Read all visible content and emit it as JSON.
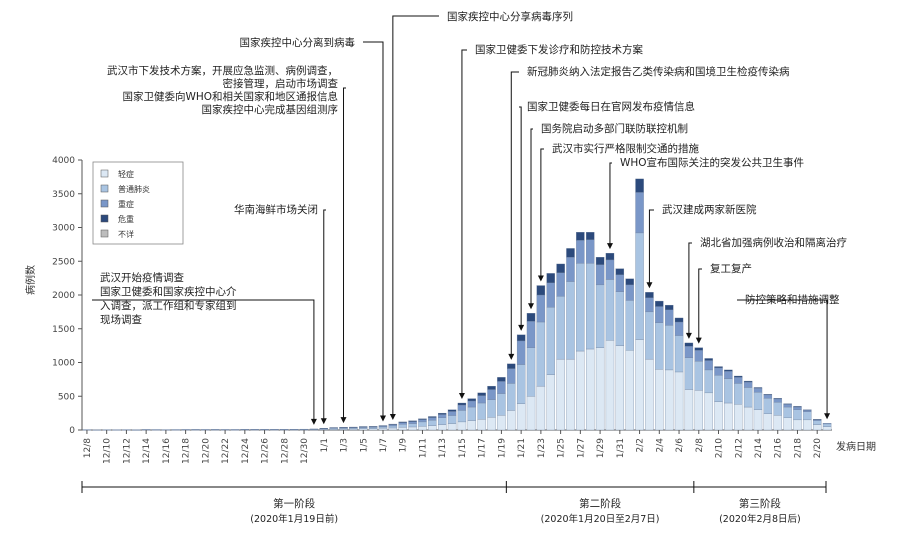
{
  "chart_data": {
    "type": "bar",
    "stacked": true,
    "ylabel": "病例数",
    "xlabel": "发病日期",
    "ylim": [
      0,
      4000
    ],
    "yticks": [
      0,
      500,
      1000,
      1500,
      2000,
      2500,
      3000,
      3500,
      4000
    ],
    "x_tick_labels": [
      "12/8",
      "12/10",
      "12/12",
      "12/14",
      "12/16",
      "12/18",
      "12/20",
      "12/22",
      "12/24",
      "12/26",
      "12/28",
      "12/30",
      "1/1",
      "1/3",
      "1/5",
      "1/7",
      "1/9",
      "1/11",
      "1/13",
      "1/15",
      "1/17",
      "1/19",
      "1/21",
      "1/23",
      "1/25",
      "1/27",
      "1/29",
      "1/31",
      "2/2",
      "2/4",
      "2/6",
      "2/8",
      "2/10",
      "2/12",
      "2/14",
      "2/16",
      "2/18",
      "2/20"
    ],
    "categories": [
      "12/8",
      "12/9",
      "12/10",
      "12/11",
      "12/12",
      "12/13",
      "12/14",
      "12/15",
      "12/16",
      "12/17",
      "12/18",
      "12/19",
      "12/20",
      "12/21",
      "12/22",
      "12/23",
      "12/24",
      "12/25",
      "12/26",
      "12/27",
      "12/28",
      "12/29",
      "12/30",
      "12/31",
      "1/1",
      "1/2",
      "1/3",
      "1/4",
      "1/5",
      "1/6",
      "1/7",
      "1/8",
      "1/9",
      "1/10",
      "1/11",
      "1/12",
      "1/13",
      "1/14",
      "1/15",
      "1/16",
      "1/17",
      "1/18",
      "1/19",
      "1/20",
      "1/21",
      "1/22",
      "1/23",
      "1/24",
      "1/25",
      "1/26",
      "1/27",
      "1/28",
      "1/29",
      "1/30",
      "1/31",
      "2/1",
      "2/2",
      "2/3",
      "2/4",
      "2/5",
      "2/6",
      "2/7",
      "2/8",
      "2/9",
      "2/10",
      "2/11",
      "2/12",
      "2/13",
      "2/14",
      "2/15",
      "2/16",
      "2/17",
      "2/18",
      "2/19",
      "2/20",
      "2/21"
    ],
    "series": [
      {
        "name": "轻症",
        "color": "#dce8f4",
        "values": [
          3,
          1,
          2,
          2,
          2,
          1,
          3,
          3,
          2,
          3,
          3,
          3,
          3,
          4,
          3,
          3,
          4,
          4,
          4,
          4,
          4,
          5,
          5,
          6,
          8,
          12,
          14,
          15,
          18,
          20,
          25,
          30,
          40,
          45,
          55,
          65,
          80,
          95,
          120,
          140,
          160,
          190,
          220,
          290,
          390,
          500,
          650,
          820,
          1050,
          1050,
          1170,
          1200,
          1220,
          1330,
          1250,
          1180,
          1340,
          1050,
          900,
          890,
          860,
          600,
          590,
          550,
          420,
          400,
          380,
          340,
          300,
          240,
          220,
          180,
          150,
          150,
          80,
          50
        ]
      },
      {
        "name": "普通肺炎",
        "color": "#a9c4e2",
        "values": [
          2,
          1,
          2,
          1,
          3,
          2,
          4,
          3,
          3,
          3,
          4,
          4,
          4,
          4,
          4,
          4,
          5,
          5,
          5,
          5,
          5,
          5,
          6,
          7,
          10,
          12,
          14,
          15,
          17,
          18,
          20,
          30,
          45,
          50,
          65,
          80,
          100,
          120,
          170,
          200,
          240,
          260,
          320,
          400,
          580,
          720,
          950,
          1000,
          930,
          1150,
          1300,
          1270,
          930,
          900,
          800,
          740,
          1580,
          700,
          690,
          660,
          540,
          470,
          430,
          340,
          390,
          360,
          310,
          290,
          260,
          230,
          190,
          160,
          150,
          120,
          60,
          40
        ]
      },
      {
        "name": "重症",
        "color": "#7a97c8",
        "values": [
          1,
          0,
          1,
          1,
          1,
          1,
          1,
          1,
          1,
          1,
          1,
          2,
          1,
          1,
          1,
          1,
          1,
          2,
          2,
          2,
          2,
          2,
          2,
          3,
          6,
          10,
          10,
          10,
          12,
          12,
          15,
          20,
          25,
          30,
          35,
          40,
          50,
          60,
          80,
          90,
          110,
          150,
          180,
          220,
          350,
          390,
          400,
          360,
          350,
          360,
          340,
          350,
          300,
          290,
          250,
          230,
          600,
          210,
          240,
          230,
          200,
          170,
          160,
          140,
          110,
          110,
          90,
          80,
          60,
          50,
          50,
          40,
          40,
          25,
          15,
          10
        ]
      },
      {
        "name": "危重",
        "color": "#2c4a7c",
        "values": [
          0,
          0,
          0,
          0,
          0,
          0,
          0,
          0,
          0,
          0,
          0,
          0,
          0,
          0,
          0,
          0,
          0,
          0,
          0,
          0,
          0,
          0,
          0,
          0,
          2,
          3,
          4,
          4,
          5,
          5,
          6,
          8,
          10,
          12,
          12,
          15,
          20,
          25,
          30,
          35,
          40,
          50,
          60,
          70,
          90,
          120,
          140,
          140,
          130,
          130,
          120,
          110,
          110,
          100,
          90,
          90,
          200,
          80,
          80,
          70,
          60,
          50,
          40,
          30,
          20,
          20,
          20,
          15,
          10,
          10,
          10,
          10,
          10,
          5,
          5,
          0
        ]
      },
      {
        "name": "不详",
        "color": "#bdbdbd",
        "values": [
          0,
          0,
          0,
          0,
          0,
          0,
          0,
          0,
          0,
          0,
          0,
          0,
          0,
          0,
          0,
          0,
          0,
          0,
          0,
          0,
          0,
          0,
          0,
          0,
          0,
          0,
          0,
          0,
          0,
          0,
          0,
          0,
          0,
          0,
          0,
          0,
          0,
          0,
          0,
          0,
          0,
          0,
          0,
          0,
          0,
          0,
          0,
          0,
          0,
          0,
          0,
          0,
          0,
          0,
          0,
          0,
          0,
          0,
          0,
          0,
          0,
          0,
          0,
          0,
          0,
          0,
          0,
          0,
          0,
          0,
          0,
          0,
          0,
          0,
          0,
          0
        ]
      }
    ],
    "legend_position": "top-left"
  },
  "annotations": [
    {
      "date": "1/8",
      "lines": [
        "国家疾控中心分享病毒序列"
      ]
    },
    {
      "date": "1/7",
      "lines": [
        "国家疾控中心分离到病毒"
      ]
    },
    {
      "date": "1/3",
      "lines": [
        "武汉市下发技术方案，开展应急监测、病例调查，",
        "密接管理，启动市场调查",
        "国家卫健委向WHO和相关国家和地区通报信息",
        "国家疾控中心完成基因组测序"
      ]
    },
    {
      "date": "1/1",
      "lines": [
        "华南海鲜市场关闭"
      ]
    },
    {
      "date": "12/31",
      "lines": [
        "武汉开始疫情调查",
        "国家卫健委和国家疾控中心介",
        "入调查，派工作组和专家组到",
        "现场调查"
      ]
    },
    {
      "date": "1/15",
      "lines": [
        "国家卫健委下发诊疗和防控技术方案"
      ]
    },
    {
      "date": "1/20",
      "lines": [
        "新冠肺炎纳入法定报告乙类传染病和国境卫生检疫传染病"
      ]
    },
    {
      "date": "1/21",
      "lines": [
        "国家卫健委每日在官网发布疫情信息"
      ]
    },
    {
      "date": "1/22",
      "lines": [
        "国务院启动多部门联防联控机制"
      ]
    },
    {
      "date": "1/23",
      "lines": [
        "武汉市实行严格限制交通的措施"
      ]
    },
    {
      "date": "1/30",
      "lines": [
        "WHO宣布国际关注的突发公共卫生事件"
      ]
    },
    {
      "date": "2/3",
      "lines": [
        "武汉建成两家新医院"
      ]
    },
    {
      "date": "2/7",
      "lines": [
        "湖北省加强病例收治和隔离治疗"
      ]
    },
    {
      "date": "2/8",
      "lines": [
        "复工复产"
      ]
    },
    {
      "date": "2/21",
      "lines": [
        "防控策略和措施调整"
      ]
    }
  ],
  "phases": [
    {
      "title": "第一阶段",
      "sub": "(2020年1月19日前)"
    },
    {
      "title": "第二阶段",
      "sub": "(2020年1月20日至2月7日)"
    },
    {
      "title": "第三阶段",
      "sub": "(2020年2月8日后)"
    }
  ]
}
